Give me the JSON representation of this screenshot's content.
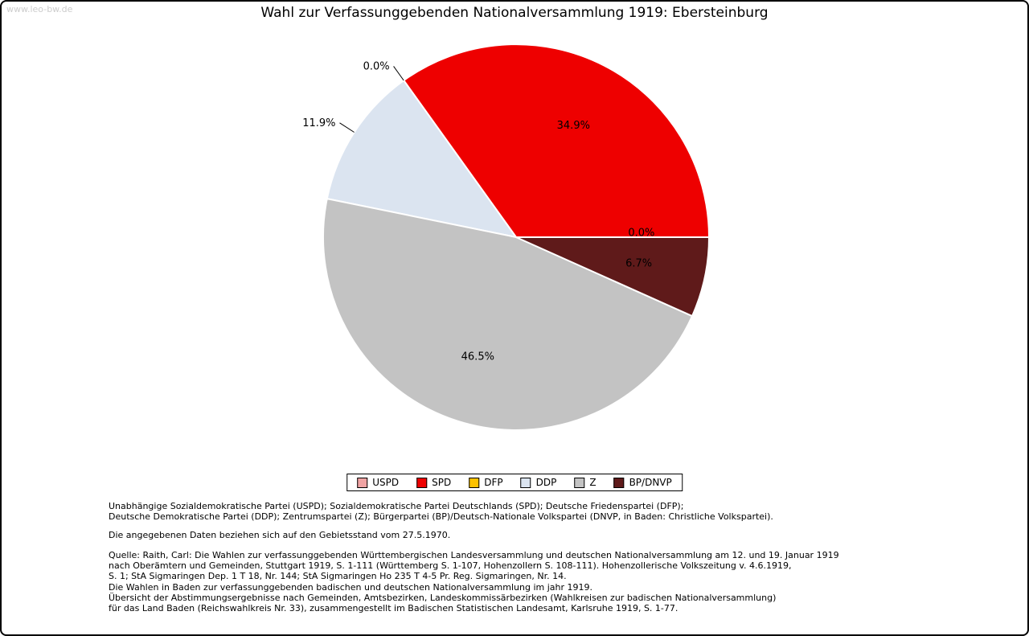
{
  "watermark": "www.leo-bw.de",
  "chart_data": {
    "type": "pie",
    "title": "Wahl zur Verfassunggebenden Nationalversammlung 1919: Ebersteinburg",
    "start_angle_deg": 0,
    "direction": "counterclockwise",
    "legend_position": "bottom",
    "slice_stroke": "#ffffff",
    "slices": [
      {
        "label": "USPD",
        "value": 0.0,
        "pct_label": "0.0%",
        "color": "#f0a3a3",
        "label_mode": "inline",
        "label_angle_offset": 2
      },
      {
        "label": "SPD",
        "value": 34.9,
        "pct_label": "34.9%",
        "color": "#ee0000",
        "label_mode": "inline",
        "label_angle_offset": 0
      },
      {
        "label": "DFP",
        "value": 0.0,
        "pct_label": "0.0%",
        "color": "#fcc200",
        "label_mode": "leader",
        "label_angle_offset": 0
      },
      {
        "label": "DDP",
        "value": 11.9,
        "pct_label": "11.9%",
        "color": "#dbe4f0",
        "label_mode": "leader",
        "label_angle_offset": 0
      },
      {
        "label": "Z",
        "value": 46.5,
        "pct_label": "46.5%",
        "color": "#c3c3c3",
        "label_mode": "inline",
        "label_angle_offset": 0
      },
      {
        "label": "BP/DNVP",
        "value": 6.7,
        "pct_label": "6.7%",
        "color": "#5f1a1a",
        "label_mode": "inline",
        "label_angle_offset": 0
      }
    ]
  },
  "footnotes": {
    "parties": "Unabhängige Sozialdemokratische Partei (USPD); Sozialdemokratische Partei Deutschlands (SPD); Deutsche Friedenspartei (DFP);\nDeutsche Demokratische Partei (DDP); Zentrumspartei (Z); Bürgerpartei (BP)/Deutsch-Nationale Volkspartei (DNVP, in Baden: Christliche Volkspartei).",
    "note": "Die angegebenen Daten beziehen sich auf den Gebietsstand vom 27.5.1970.",
    "source": "Quelle: Raith, Carl: Die Wahlen zur verfassunggebenden Württembergischen Landesversammlung und deutschen Nationalversammlung am 12. und 19. Januar 1919\nnach Oberämtern und Gemeinden, Stuttgart 1919, S. 1-111 (Württemberg S. 1-107, Hohenzollern S. 108-111). Hohenzollerische Volkszeitung v. 4.6.1919,\nS. 1; StA Sigmaringen Dep. 1 T 18, Nr. 144; StA Sigmaringen Ho 235 T 4-5 Pr. Reg. Sigmaringen, Nr. 14.\nDie Wahlen in Baden zur verfassunggebenden badischen und deutschen Nationalversammlung im jahr 1919.\nÜbersicht der Abstimmungsergebnisse nach Gemeinden, Amtsbezirken, Landeskommissärbezirken (Wahlkreisen zur badischen Nationalversammlung)\nfür das Land Baden (Reichswahlkreis Nr. 33), zusammengestellt im Badischen Statistischen Landesamt, Karlsruhe 1919, S. 1-77."
  }
}
